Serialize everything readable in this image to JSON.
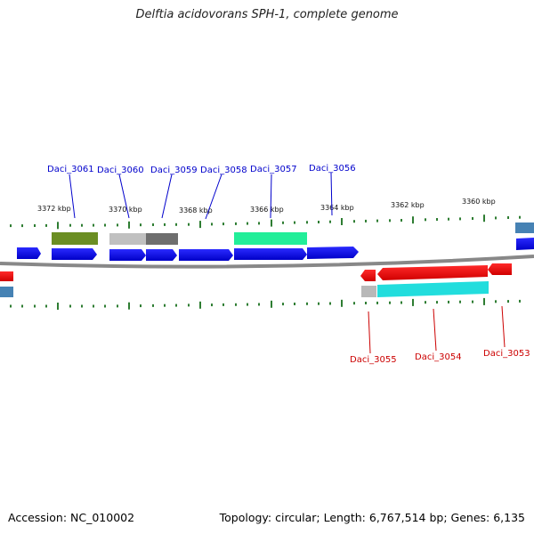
{
  "title": "Delftia acidovorans SPH-1, complete genome",
  "footer": {
    "accession": "Accession: NC_010002",
    "summary": "Topology: circular; Length: 6,767,514 bp; Genes: 6,135"
  },
  "scale_labels": [
    "3372 kbp",
    "3370 kbp",
    "3368 kbp",
    "3366 kbp",
    "3364 kbp",
    "3362 kbp",
    "3360 kbp"
  ],
  "gene_labels_top": [
    "Daci_3061",
    "Daci_3060",
    "Daci_3059",
    "Daci_3058",
    "Daci_3057",
    "Daci_3056"
  ],
  "gene_labels_bottom": [
    "Daci_3055",
    "Daci_3054",
    "Daci_3053"
  ],
  "colors": {
    "forward_gene": "#0000ee",
    "reverse_gene": "#ee0000",
    "top_label": "#0000cc",
    "bottom_label": "#cc0000",
    "tick": "#2e7d32",
    "backbone": "#888888",
    "olive": "#6b8e23",
    "light_gray": "#c0c0c0",
    "dark_gray": "#6e6e6e",
    "aquamarine": "#22ee99",
    "cyan": "#22dddd",
    "steel_blue": "#4682b4"
  }
}
